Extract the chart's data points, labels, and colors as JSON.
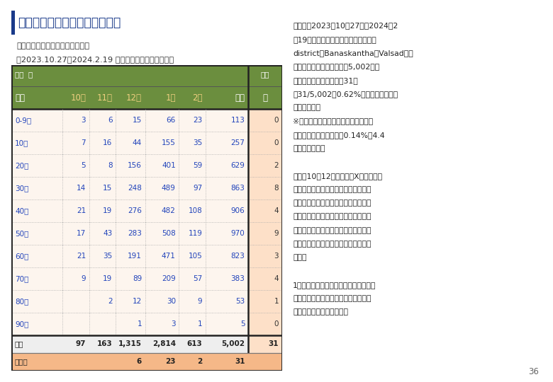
{
  "title": "今回事業で得られた検診データ",
  "subtitle_line1": "年代別／月ごとの検診者数一覧表",
  "subtitle_line2": "（2023.10.27〜2024.2.19 までの検診データを抽出）",
  "header_row1_left": "人数  月",
  "header_row1_right": "陽性",
  "header_row2": [
    "年代",
    "10月",
    "11月",
    "12月",
    "1月",
    "2月",
    "総計",
    "数"
  ],
  "data_rows": [
    [
      "0-9歳",
      "3",
      "6",
      "15",
      "66",
      "23",
      "113",
      "0"
    ],
    [
      "10代",
      "7",
      "16",
      "44",
      "155",
      "35",
      "257",
      "0"
    ],
    [
      "20代",
      "5",
      "8",
      "156",
      "401",
      "59",
      "629",
      "2"
    ],
    [
      "30代",
      "14",
      "15",
      "248",
      "489",
      "97",
      "863",
      "8"
    ],
    [
      "40代",
      "21",
      "19",
      "276",
      "482",
      "108",
      "906",
      "4"
    ],
    [
      "50代",
      "17",
      "43",
      "283",
      "508",
      "119",
      "970",
      "9"
    ],
    [
      "60代",
      "21",
      "35",
      "191",
      "471",
      "105",
      "823",
      "3"
    ],
    [
      "70代",
      "9",
      "19",
      "89",
      "209",
      "57",
      "383",
      "4"
    ],
    [
      "80代",
      "",
      "2",
      "12",
      "30",
      "9",
      "53",
      "1"
    ],
    [
      "90代",
      "",
      "",
      "1",
      "3",
      "1",
      "5",
      "0"
    ]
  ],
  "total_row": [
    "総計",
    "97",
    "163",
    "1,315",
    "2,814",
    "613",
    "5,002",
    "31"
  ],
  "positive_row": [
    "陽性数",
    "",
    "",
    "6",
    "23",
    "2",
    "31",
    ""
  ],
  "header_bg": "#6b8e3e",
  "header_text": "#ffffff",
  "month_text": "#f0d080",
  "data_bg": "#fdf5ee",
  "positive_col_bg": "#fde0c8",
  "total_row_bg": "#eeeeee",
  "positive_row_bg": "#f5b888",
  "data_text": "#2244bb",
  "total_text": "#222222",
  "right_text_lines": [
    "まとめ：2023年10月27日〜2024年2",
    "月19日の間にグジャラート州の二つの",
    "district（BanaskanthaとValsad）に",
    "て結核住民検診を実施し、5,002名に",
    "検診を実施した。結果、31名",
    "（31/5,002＝0.62%）の菌陽性肺結核",
    "を診断した。",
    "※この発見率はインドの結核有病率調",
    "査における菌陽性有病率0.14%の4.4",
    "倍に相当する。",
    "",
    "なお、10〜12月までは、X線画像読影",
    "の結果、所見の確認された受検者から",
    "のみ喀痰採集を行ったが、受験者側か",
    "らの抵抗が強く（結核と診断されたく",
    "ない）喀痰採取できないケースが相次",
    "ぎ、陽性者数が少なくなったと考えら",
    "れる。",
    "",
    "1月からは問診時点で疑いのある受検者",
    "全員から喀痰採取したため、陽性者数",
    "の多数発見につながった。"
  ],
  "page_number": "36",
  "title_bar_color": "#1a3a8a",
  "background_color": "#ffffff"
}
